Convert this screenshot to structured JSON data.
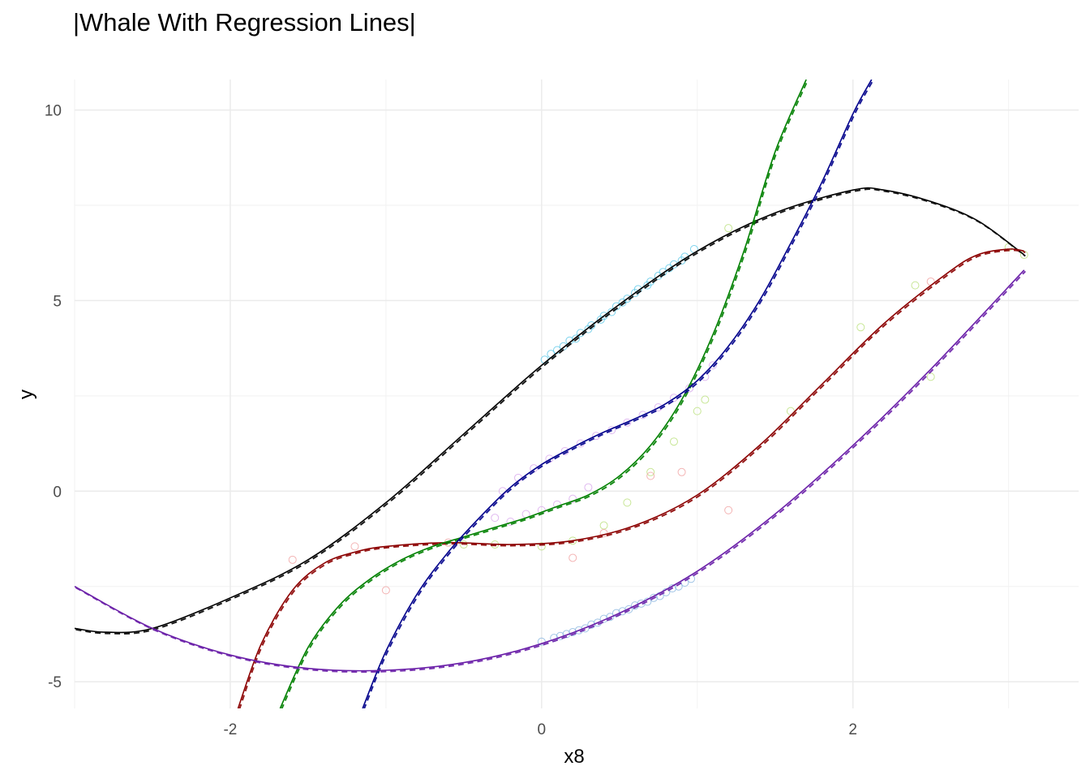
{
  "chart_data": {
    "type": "line",
    "title": "|Whale With Regression Lines|",
    "xlabel": "x8",
    "ylabel": "y",
    "xlim": [
      -3.0,
      3.45
    ],
    "ylim": [
      -5.7,
      10.8
    ],
    "x_ticks": [
      -2,
      0,
      2
    ],
    "x_tick_labels": [
      "-2",
      "0",
      "2"
    ],
    "y_ticks": [
      -5,
      0,
      5,
      10
    ],
    "y_tick_labels": [
      "-5",
      "0",
      "5",
      "10"
    ],
    "grid": true,
    "legend": "none",
    "series": [
      {
        "color": "#000000",
        "x": [
          -3.0,
          -2.8,
          -2.5,
          -2.0,
          -1.5,
          -1.0,
          -0.5,
          0.0,
          0.5,
          1.0,
          1.5,
          2.0,
          2.2,
          2.5,
          2.8,
          3.1
        ],
        "y": [
          -3.6,
          -3.7,
          -3.6,
          -2.8,
          -1.8,
          -0.3,
          1.5,
          3.3,
          4.9,
          6.3,
          7.3,
          7.9,
          7.9,
          7.6,
          7.1,
          6.2
        ]
      },
      {
        "color": "#8b0000",
        "x": [
          -1.95,
          -1.8,
          -1.6,
          -1.4,
          -1.2,
          -1.0,
          -0.6,
          -0.2,
          0.2,
          0.6,
          1.0,
          1.4,
          1.8,
          2.2,
          2.6,
          2.8,
          3.0,
          3.1
        ],
        "y": [
          -5.7,
          -4.0,
          -2.6,
          -1.9,
          -1.6,
          -1.45,
          -1.35,
          -1.4,
          -1.3,
          -0.9,
          -0.1,
          1.2,
          2.8,
          4.4,
          5.7,
          6.2,
          6.35,
          6.3
        ]
      },
      {
        "color": "#008000",
        "x": [
          -1.68,
          -1.5,
          -1.3,
          -1.1,
          -0.9,
          -0.7,
          -0.5,
          -0.3,
          -0.1,
          0.1,
          0.3,
          0.5,
          0.7,
          0.9,
          1.1,
          1.3,
          1.5,
          1.7
        ],
        "y": [
          -5.7,
          -4.1,
          -3.0,
          -2.3,
          -1.8,
          -1.45,
          -1.2,
          -0.95,
          -0.7,
          -0.4,
          -0.1,
          0.4,
          1.2,
          2.4,
          4.1,
          6.3,
          8.9,
          10.8
        ]
      },
      {
        "color": "#00008b",
        "x": [
          -1.15,
          -1.0,
          -0.8,
          -0.6,
          -0.4,
          -0.2,
          0.0,
          0.2,
          0.4,
          0.6,
          0.8,
          1.0,
          1.2,
          1.4,
          1.6,
          1.8,
          2.0,
          2.12
        ],
        "y": [
          -5.7,
          -4.2,
          -2.7,
          -1.6,
          -0.7,
          0.1,
          0.7,
          1.15,
          1.55,
          1.9,
          2.3,
          2.9,
          3.8,
          5.0,
          6.5,
          8.1,
          9.9,
          10.8
        ]
      },
      {
        "color": "#6a1fa8",
        "x": [
          -3.0,
          -2.5,
          -2.0,
          -1.5,
          -1.0,
          -0.5,
          0.0,
          0.5,
          1.0,
          1.5,
          2.0,
          2.5,
          3.1
        ],
        "y": [
          -2.5,
          -3.6,
          -4.3,
          -4.65,
          -4.7,
          -4.5,
          -4.0,
          -3.2,
          -2.1,
          -0.6,
          1.2,
          3.2,
          5.8
        ]
      }
    ],
    "point_clusters": [
      {
        "color": "#5bc8e8",
        "x": [
          0.02,
          0.1,
          0.18,
          0.25,
          0.32,
          0.4,
          0.48,
          0.55,
          0.62,
          0.7,
          0.78,
          0.85,
          0.92,
          0.98,
          0.06,
          0.14,
          0.22,
          0.3,
          0.38,
          0.45,
          0.52,
          0.6,
          0.68,
          0.75,
          0.82,
          0.9
        ],
        "y": [
          3.45,
          3.7,
          3.95,
          4.15,
          4.35,
          4.6,
          4.85,
          5.05,
          5.3,
          5.5,
          5.75,
          5.95,
          6.15,
          6.35,
          3.6,
          3.8,
          4.0,
          4.25,
          4.5,
          4.7,
          4.95,
          5.2,
          5.4,
          5.65,
          5.85,
          6.05
        ]
      },
      {
        "color": "#8ab6e0",
        "x": [
          0.0,
          0.08,
          0.16,
          0.24,
          0.32,
          0.4,
          0.48,
          0.56,
          0.64,
          0.72,
          0.8,
          0.88,
          0.96,
          0.12,
          0.2,
          0.28,
          0.36,
          0.44,
          0.52,
          0.6,
          0.68,
          0.76,
          0.84,
          0.92
        ],
        "y": [
          -3.95,
          -3.85,
          -3.75,
          -3.65,
          -3.5,
          -3.35,
          -3.2,
          -3.1,
          -2.95,
          -2.8,
          -2.65,
          -2.5,
          -2.3,
          -3.8,
          -3.7,
          -3.6,
          -3.45,
          -3.3,
          -3.15,
          -3.0,
          -2.9,
          -2.75,
          -2.55,
          -2.4
        ]
      },
      {
        "color": "#d8a8ec",
        "x": [
          -0.25,
          -0.15,
          -0.05,
          0.05,
          0.15,
          0.25,
          0.35,
          0.45,
          0.55,
          0.65,
          0.75,
          0.85,
          0.95,
          1.05,
          1.1,
          -0.3,
          -0.2,
          -0.1,
          0.0,
          0.1,
          0.2,
          0.3
        ],
        "y": [
          0.0,
          0.35,
          0.6,
          0.85,
          1.05,
          1.25,
          1.45,
          1.6,
          1.8,
          2.0,
          2.2,
          2.45,
          2.7,
          3.0,
          3.3,
          -0.7,
          -0.8,
          -0.6,
          -0.5,
          -0.35,
          -0.2,
          0.1
        ]
      },
      {
        "color": "#b9e07a",
        "x": [
          -0.5,
          -0.3,
          0.0,
          0.2,
          0.4,
          0.55,
          0.7,
          0.85,
          1.0,
          1.05,
          1.2,
          1.6,
          2.05,
          2.4,
          2.5,
          3.0,
          3.1
        ],
        "y": [
          -1.4,
          -1.4,
          -1.45,
          -1.3,
          -0.9,
          -0.3,
          0.5,
          1.3,
          2.1,
          2.4,
          6.9,
          2.1,
          4.3,
          5.4,
          3.0,
          6.4,
          6.2
        ]
      },
      {
        "color": "#f0a0a0",
        "x": [
          -1.6,
          -1.2,
          -1.0,
          -0.6,
          0.2,
          0.4,
          0.7,
          0.9,
          1.2,
          2.5
        ],
        "y": [
          -1.8,
          -1.45,
          -2.6,
          -1.35,
          -1.75,
          -1.1,
          0.4,
          0.5,
          -0.5,
          5.5
        ]
      }
    ]
  }
}
